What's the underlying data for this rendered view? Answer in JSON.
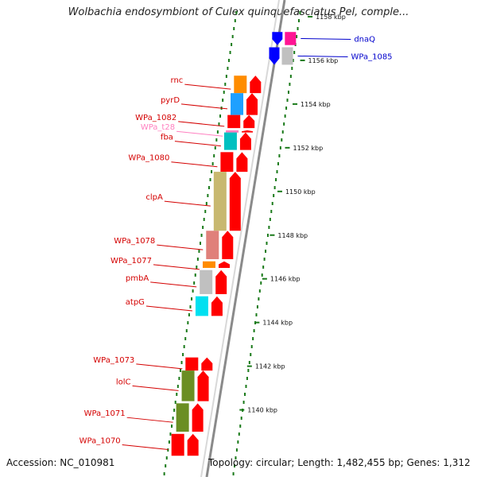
{
  "title": "Wolbachia endosymbiont of Culex quinquefasciatus Pel, comple...",
  "footer": {
    "accession": "Accession: NC_010981",
    "topology": "Topology: circular; Length: 1,482,455 bp; Genes: 1,312"
  },
  "colors": {
    "backbone": "#8a8a8a",
    "ticks": "#1a7a1a",
    "forward_label": "#d40000",
    "rna_label": "#ff80c0",
    "reverse_label": "#0000cc"
  },
  "kbp_ticks": [
    {
      "label": "1158 kbp",
      "value": 1158
    },
    {
      "label": "1156 kbp",
      "value": 1156
    },
    {
      "label": "1154 kbp",
      "value": 1154
    },
    {
      "label": "1152 kbp",
      "value": 1152
    },
    {
      "label": "1150 kbp",
      "value": 1150
    },
    {
      "label": "1148 kbp",
      "value": 1148
    },
    {
      "label": "1146 kbp",
      "value": 1146
    },
    {
      "label": "1144 kbp",
      "value": 1144
    },
    {
      "label": "1142 kbp",
      "value": 1142
    },
    {
      "label": "1140 kbp",
      "value": 1140
    }
  ],
  "forward_genes": [
    {
      "name": "rnc",
      "type": "gene",
      "color": "#ff8c00",
      "start": 1154.5,
      "end": 1155.3
    },
    {
      "name": "pyrD",
      "type": "gene",
      "color": "#1ea0ff",
      "start": 1153.5,
      "end": 1154.5
    },
    {
      "name": "WPa_1082",
      "type": "gene",
      "color": "#ff0000",
      "start": 1152.9,
      "end": 1153.5
    },
    {
      "name": "WPa_t28",
      "type": "rna",
      "color": "#ff80c0",
      "start": 1152.7,
      "end": 1152.8
    },
    {
      "name": "fba",
      "type": "gene",
      "color": "#00c0c0",
      "start": 1151.9,
      "end": 1152.7
    },
    {
      "name": "WPa_1080",
      "type": "gene",
      "color": "#ff0000",
      "start": 1150.9,
      "end": 1151.8
    },
    {
      "name": "clpA",
      "type": "gene",
      "color": "#c8b870",
      "start": 1148.2,
      "end": 1150.9
    },
    {
      "name": "WPa_1078",
      "type": "gene",
      "color": "#e0807a",
      "start": 1146.9,
      "end": 1148.2
    },
    {
      "name": "WPa_1077",
      "type": "gene",
      "color": "#ff8c00",
      "start": 1146.5,
      "end": 1146.8
    },
    {
      "name": "pmbA",
      "type": "gene",
      "color": "#c0c0c0",
      "start": 1145.3,
      "end": 1146.4
    },
    {
      "name": "atpG",
      "type": "gene",
      "color": "#00e0f0",
      "start": 1144.3,
      "end": 1145.2
    },
    {
      "name": "WPa_1073",
      "type": "gene",
      "color": "#ff0000",
      "start": 1141.8,
      "end": 1142.4
    },
    {
      "name": "lolC",
      "type": "gene",
      "color": "#6b8e23",
      "start": 1140.4,
      "end": 1141.8
    },
    {
      "name": "WPa_1071",
      "type": "gene",
      "color": "#6b8e23",
      "start": 1139.0,
      "end": 1140.3
    },
    {
      "name": "WPa_1070",
      "type": "gene",
      "color": "#ff0000",
      "start": 1137.9,
      "end": 1138.9
    }
  ],
  "reverse_genes": [
    {
      "name": "dnaQ",
      "type": "gene",
      "color": "#ff1493",
      "start": 1156.7,
      "end": 1157.3
    },
    {
      "name": "WPa_1085",
      "type": "gene",
      "color": "#c0c0c0",
      "start": 1155.8,
      "end": 1156.6
    }
  ]
}
